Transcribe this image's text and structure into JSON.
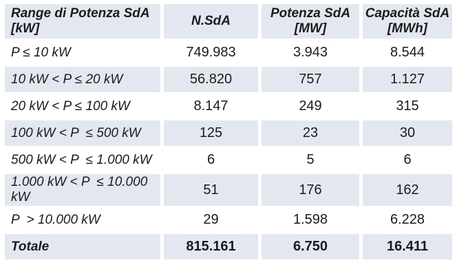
{
  "colors": {
    "band": "#e3e8f0",
    "text": "#1b1b1d",
    "background": "#ffffff"
  },
  "table": {
    "columns": [
      {
        "label": "Range di Potenza SdA [kW]"
      },
      {
        "label": "N.SdA"
      },
      {
        "label": "Potenza SdA\n[MW]"
      },
      {
        "label": "Capacità SdA\n[MWh]"
      }
    ],
    "rows": [
      {
        "range": "P ≤ 10 kW",
        "n_sda": "749.983",
        "potenza_mw": "3.943",
        "capacita_mwh": "8.544"
      },
      {
        "range": "10 kW < P ≤ 20 kW",
        "n_sda": "56.820",
        "potenza_mw": "757",
        "capacita_mwh": "1.127"
      },
      {
        "range": "20 kW < P ≤ 100 kW",
        "n_sda": "8.147",
        "potenza_mw": "249",
        "capacita_mwh": "315"
      },
      {
        "range": "100 kW < P  ≤ 500 kW",
        "n_sda": "125",
        "potenza_mw": "23",
        "capacita_mwh": "30"
      },
      {
        "range": "500 kW < P  ≤ 1.000 kW",
        "n_sda": "6",
        "potenza_mw": "5",
        "capacita_mwh": "6"
      },
      {
        "range": "1.000 kW < P  ≤ 10.000 kW",
        "n_sda": "51",
        "potenza_mw": "176",
        "capacita_mwh": "162"
      },
      {
        "range": "P  > 10.000 kW",
        "n_sda": "29",
        "potenza_mw": "1.598",
        "capacita_mwh": "6.228"
      }
    ],
    "total": {
      "range": "Totale",
      "n_sda": "815.161",
      "potenza_mw": "6.750",
      "capacita_mwh": "16.411"
    }
  },
  "chart_data": {
    "type": "table",
    "title": "",
    "columns": [
      "Range di Potenza SdA [kW]",
      "N.SdA",
      "Potenza SdA [MW]",
      "Capacità SdA [MWh]"
    ],
    "rows": [
      [
        "P ≤ 10 kW",
        "749.983",
        "3.943",
        "8.544"
      ],
      [
        "10 kW < P ≤ 20 kW",
        "56.820",
        "757",
        "1.127"
      ],
      [
        "20 kW < P ≤ 100 kW",
        "8.147",
        "249",
        "315"
      ],
      [
        "100 kW < P ≤ 500 kW",
        "125",
        "23",
        "30"
      ],
      [
        "500 kW < P ≤ 1.000 kW",
        "6",
        "5",
        "6"
      ],
      [
        "1.000 kW < P ≤ 10.000 kW",
        "51",
        "176",
        "162"
      ],
      [
        "P > 10.000 kW",
        "29",
        "1.598",
        "6.228"
      ],
      [
        "Totale",
        "815.161",
        "6.750",
        "16.411"
      ]
    ],
    "layout_hints": {
      "banded_rows": true,
      "band_color": "#e3e8f0",
      "total_row_bold": true
    }
  }
}
